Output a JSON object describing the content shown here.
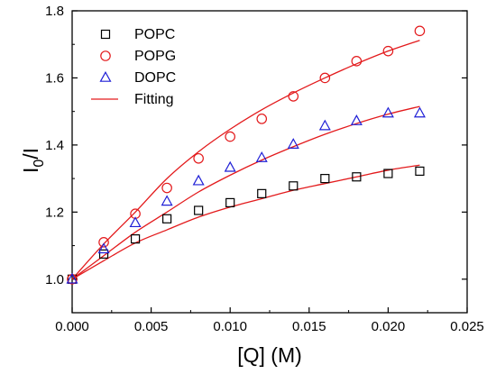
{
  "chart_data": {
    "type": "scatter",
    "xlabel": "[Q] (M)",
    "ylabel": {
      "main": "I",
      "sub": "0",
      "tail": "/I"
    },
    "xlim": [
      0,
      0.025
    ],
    "ylim": [
      0.9,
      1.8
    ],
    "x_ticks": [
      0.0,
      0.005,
      0.01,
      0.015,
      0.02,
      0.025
    ],
    "x_tick_labels": [
      "0.000",
      "0.005",
      "0.010",
      "0.015",
      "0.020",
      "0.025"
    ],
    "y_ticks": [
      1.0,
      1.2,
      1.4,
      1.6,
      1.8
    ],
    "y_tick_labels": [
      "1.0",
      "1.2",
      "1.4",
      "1.6",
      "1.8"
    ],
    "grid": false,
    "legend_position": "top-left",
    "x": [
      0.0,
      0.002,
      0.004,
      0.006,
      0.008,
      0.01,
      0.012,
      0.014,
      0.016,
      0.018,
      0.02,
      0.022
    ],
    "series": [
      {
        "name": "POPC",
        "marker": "square",
        "color": "#000000",
        "values": [
          1.0,
          1.075,
          1.12,
          1.18,
          1.205,
          1.228,
          1.255,
          1.278,
          1.3,
          1.305,
          1.315,
          1.322
        ]
      },
      {
        "name": "POPG",
        "marker": "circle",
        "color": "#e31a1c",
        "values": [
          1.0,
          1.11,
          1.195,
          1.272,
          1.36,
          1.425,
          1.478,
          1.545,
          1.6,
          1.65,
          1.68,
          1.74
        ]
      },
      {
        "name": "DOPC",
        "marker": "triangle",
        "color": "#1f1fd6",
        "values": [
          1.0,
          1.09,
          1.168,
          1.232,
          1.293,
          1.333,
          1.362,
          1.402,
          1.457,
          1.472,
          1.495,
          1.495
        ]
      }
    ],
    "fits": [
      {
        "name": "Fitting",
        "color": "#e31a1c",
        "x": [
          0.0,
          0.002,
          0.004,
          0.006,
          0.008,
          0.01,
          0.012,
          0.014,
          0.016,
          0.018,
          0.02,
          0.022
        ],
        "values": [
          1.0,
          1.055,
          1.108,
          1.147,
          1.185,
          1.215,
          1.24,
          1.265,
          1.285,
          1.305,
          1.325,
          1.34
        ]
      },
      {
        "name": "Fitting",
        "color": "#e31a1c",
        "x": [
          0.0,
          0.002,
          0.004,
          0.006,
          0.008,
          0.01,
          0.012,
          0.014,
          0.016,
          0.018,
          0.02,
          0.022
        ],
        "values": [
          1.0,
          1.105,
          1.2,
          1.3,
          1.38,
          1.447,
          1.505,
          1.555,
          1.6,
          1.642,
          1.68,
          1.712
        ]
      },
      {
        "name": "Fitting",
        "color": "#e31a1c",
        "x": [
          0.0,
          0.002,
          0.004,
          0.006,
          0.008,
          0.01,
          0.012,
          0.014,
          0.016,
          0.018,
          0.02,
          0.022
        ],
        "values": [
          1.0,
          1.07,
          1.14,
          1.2,
          1.26,
          1.31,
          1.355,
          1.395,
          1.432,
          1.464,
          1.492,
          1.515
        ]
      }
    ],
    "legend": [
      {
        "label": "POPC",
        "marker": "square",
        "color": "#000000"
      },
      {
        "label": "POPG",
        "marker": "circle",
        "color": "#e31a1c"
      },
      {
        "label": "DOPC",
        "marker": "triangle",
        "color": "#1f1fd6"
      },
      {
        "label": "Fitting",
        "marker": "line",
        "color": "#e31a1c"
      }
    ]
  }
}
